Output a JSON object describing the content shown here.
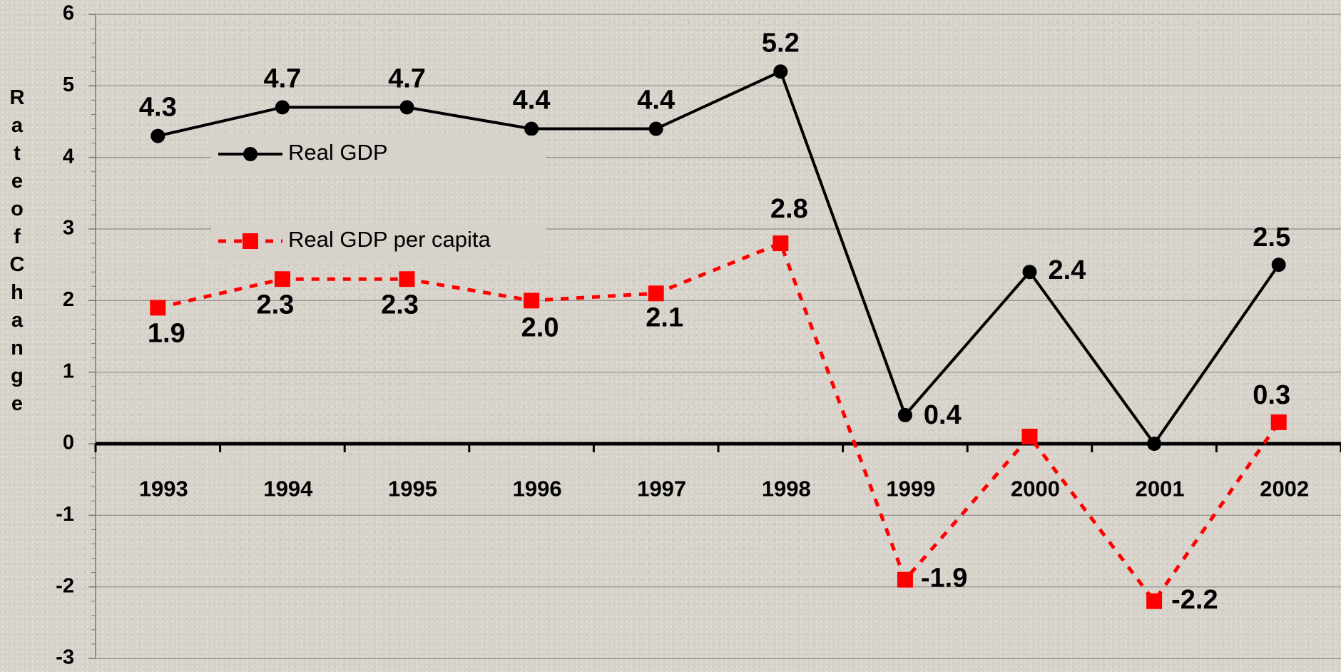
{
  "chart_data": {
    "type": "line",
    "y_label": "Rate of Change",
    "categories": [
      "1993",
      "1994",
      "1995",
      "1996",
      "1997",
      "1998",
      "1999",
      "2000",
      "2001",
      "2002"
    ],
    "series": [
      {
        "name": "Real GDP",
        "color": "#000000",
        "dash": false,
        "marker": "circle",
        "values": [
          4.3,
          4.7,
          4.7,
          4.4,
          4.4,
          5.2,
          0.4,
          2.4,
          0.0,
          2.5
        ],
        "value_labels": [
          "4.3",
          "4.7",
          "4.7",
          "4.4",
          "4.4",
          "5.2",
          "0.4",
          "2.4",
          null,
          "2.5"
        ]
      },
      {
        "name": "Real GDP per capita",
        "color": "#ff0000",
        "dash": true,
        "marker": "square",
        "values": [
          1.9,
          2.3,
          2.3,
          2.0,
          2.1,
          2.8,
          -1.9,
          0.1,
          -2.2,
          0.3
        ],
        "value_labels": [
          "1.9",
          "2.3",
          "2.3",
          "2.0",
          "2.1",
          "2.8",
          "-1.9",
          null,
          "-2.2",
          "0.3"
        ]
      }
    ],
    "ylim": [
      -3,
      6
    ],
    "yticks": [
      -3,
      -2,
      -1,
      0,
      1,
      2,
      3,
      4,
      5,
      6
    ],
    "grid": true,
    "legend": "upper-left"
  }
}
